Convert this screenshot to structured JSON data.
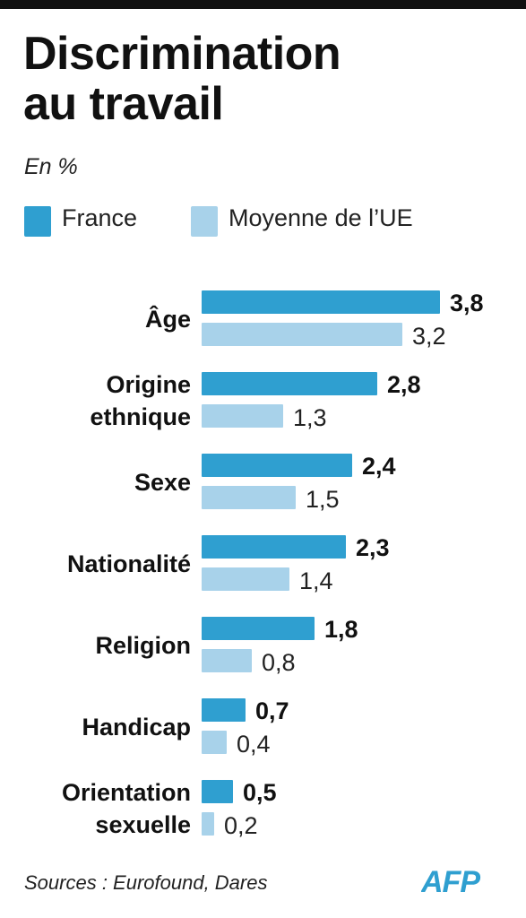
{
  "title_line1": "Discrimination",
  "title_line2": "au travail",
  "subtitle": "En %",
  "source": "Sources : Eurofound, Dares",
  "logo_text": "AFP",
  "colors": {
    "france": "#2f9fd0",
    "ue": "#a8d2ea",
    "logo": "#2f9fd0",
    "rule": "#111111"
  },
  "chart_data": {
    "type": "bar",
    "orientation": "horizontal",
    "title": "Discrimination au travail",
    "subtitle": "En %",
    "categories": [
      [
        "Âge"
      ],
      [
        "Origine",
        "ethnique"
      ],
      [
        "Sexe"
      ],
      [
        "Nationalité"
      ],
      [
        "Religion"
      ],
      [
        "Handicap"
      ],
      [
        "Orientation",
        "sexuelle"
      ]
    ],
    "series": [
      {
        "name": "France",
        "values": [
          3.8,
          2.8,
          2.4,
          2.3,
          1.8,
          0.7,
          0.5
        ],
        "labels": [
          "3,8",
          "2,8",
          "2,4",
          "2,3",
          "1,8",
          "0,7",
          "0,5"
        ]
      },
      {
        "name": "Moyenne de l’UE",
        "values": [
          3.2,
          1.3,
          1.5,
          1.4,
          0.8,
          0.4,
          0.2
        ],
        "labels": [
          "3,2",
          "1,3",
          "1,5",
          "1,4",
          "0,8",
          "0,4",
          "0,2"
        ]
      }
    ],
    "legend": "top",
    "grid": false
  }
}
